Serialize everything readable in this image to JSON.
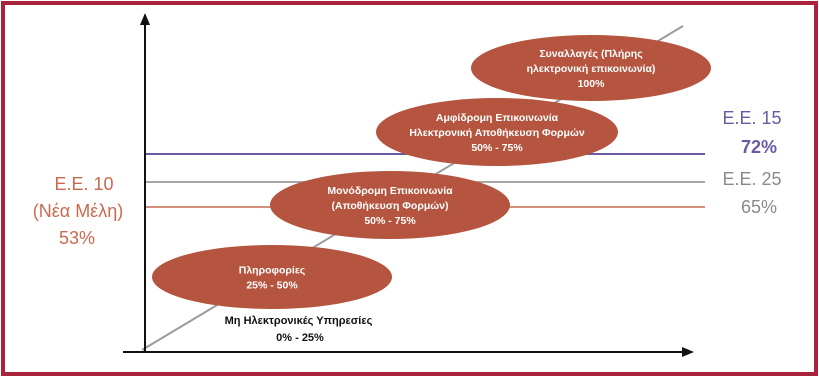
{
  "colors": {
    "frame": "#a8233b",
    "ellipse": "#b5553f",
    "ellipse_text": "#ffffff",
    "eu15": "#6b5aa3",
    "eu25": "#8a8a8a",
    "eu10": "#c96a50",
    "axis": "#111111",
    "diagonal": "#9b9b9b"
  },
  "stages": [
    {
      "lines": [
        "Μη Ηλεκτρονικές Υπηρεσίες",
        "0% - 25%"
      ]
    },
    {
      "lines": [
        "Πληροφορίες",
        "25% - 50%"
      ]
    },
    {
      "lines": [
        "Μονόδρομη Επικοινωνία",
        "(Αποθήκευση Φορμών)",
        "50% - 75%"
      ]
    },
    {
      "lines": [
        "Αμφίδρομη Επικοινωνία",
        "Ηλεκτρονική Αποθήκευση Φορμών",
        "50% - 75%"
      ]
    },
    {
      "lines": [
        "Συναλλαγές (Πλήρης",
        "ηλεκτρονική επικοινωνία)",
        "100%"
      ]
    }
  ],
  "labels": {
    "eu15": {
      "name": "Ε.Ε. 15",
      "value": "72%"
    },
    "eu25": {
      "name": "Ε.Ε. 25",
      "value": "65%"
    },
    "eu10": {
      "name": "Ε.Ε. 10",
      "sub": "(Νέα Μέλη)",
      "value": "53%"
    }
  }
}
